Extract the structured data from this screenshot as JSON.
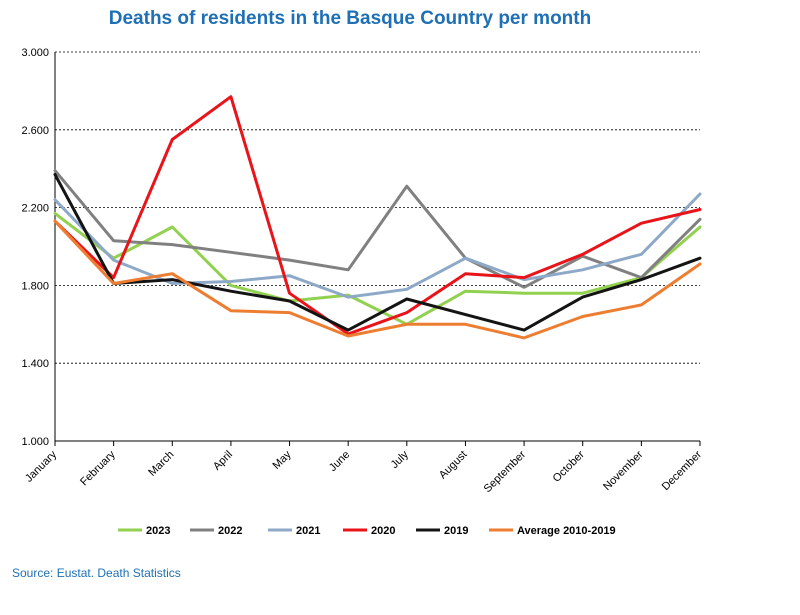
{
  "chart_data": {
    "type": "line",
    "title": "Deaths of residents in the Basque Country per month",
    "xlabel": "",
    "ylabel": "",
    "categories": [
      "January",
      "February",
      "March",
      "April",
      "May",
      "June",
      "July",
      "August",
      "September",
      "October",
      "November",
      "December"
    ],
    "ylim": [
      1000,
      3000
    ],
    "yticks": [
      1000,
      1400,
      1800,
      2200,
      2600,
      3000
    ],
    "ytick_labels": [
      "1.000",
      "1.400",
      "1.800",
      "2.200",
      "2.600",
      "3.000"
    ],
    "grid": "horizontal dashed",
    "legend_position": "bottom",
    "series": [
      {
        "name": "2023",
        "color": "#92d050",
        "values": [
          2170,
          1940,
          2100,
          1800,
          1720,
          1750,
          1600,
          1770,
          1760,
          1760,
          1840,
          2100
        ]
      },
      {
        "name": "2022",
        "color": "#808080",
        "values": [
          2390,
          2030,
          2010,
          1970,
          1930,
          1880,
          2310,
          1940,
          1790,
          1950,
          1840,
          2140
        ]
      },
      {
        "name": "2021",
        "color": "#8ea9c8",
        "values": [
          2240,
          1930,
          1810,
          1820,
          1850,
          1740,
          1780,
          1940,
          1830,
          1880,
          1960,
          2270
        ]
      },
      {
        "name": "2020",
        "color": "#e8141a",
        "values": [
          2130,
          1840,
          2550,
          2770,
          1760,
          1550,
          1660,
          1860,
          1840,
          1960,
          2120,
          2190
        ]
      },
      {
        "name": "2019",
        "color": "#141414",
        "values": [
          2370,
          1810,
          1830,
          1770,
          1720,
          1570,
          1730,
          1650,
          1570,
          1740,
          1830,
          1940
        ]
      },
      {
        "name": "Average 2010-2019",
        "color": "#ed7d31",
        "values": [
          2130,
          1810,
          1860,
          1670,
          1660,
          1540,
          1600,
          1600,
          1530,
          1640,
          1700,
          1910
        ]
      }
    ]
  },
  "source": "Source: Eustat. Death Statistics"
}
